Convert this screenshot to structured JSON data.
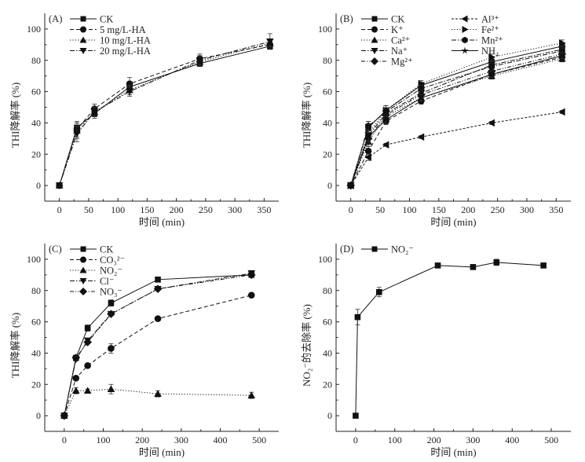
{
  "chart_data": [
    {
      "type": "line",
      "panel_tag": "(A)",
      "xlabel": "时间 (min)",
      "ylabel": "THI降解率 (%)",
      "xlim": [
        -25,
        375
      ],
      "ylim": [
        -10,
        110
      ],
      "xticks": [
        0,
        50,
        100,
        150,
        200,
        250,
        300,
        350
      ],
      "yticks": [
        0,
        20,
        40,
        60,
        80,
        100
      ],
      "legend_position": "top-left",
      "legend_columns": 1,
      "series": [
        {
          "name": "CK",
          "marker": "square",
          "dash": "solid",
          "x": [
            0,
            30,
            60,
            120,
            240,
            360
          ],
          "y": [
            0,
            37,
            46,
            63,
            78,
            89
          ],
          "err": [
            0,
            3,
            3,
            3,
            2,
            2
          ]
        },
        {
          "name": "5  mg/L-HA",
          "marker": "circle",
          "dash": "dashed",
          "x": [
            0,
            30,
            60,
            120,
            240,
            360
          ],
          "y": [
            0,
            36,
            49,
            65,
            81,
            90
          ],
          "err": [
            0,
            5,
            3,
            4,
            3,
            2
          ]
        },
        {
          "name": "10 mg/L-HA",
          "marker": "triangle-up",
          "dash": "dotted",
          "x": [
            0,
            30,
            60,
            120,
            240,
            360
          ],
          "y": [
            0,
            35,
            47,
            61,
            79,
            91
          ],
          "err": [
            0,
            5,
            3,
            3,
            2,
            2
          ]
        },
        {
          "name": "20 mg/L-HA",
          "marker": "triangle-down",
          "dash": "dashdot",
          "x": [
            0,
            30,
            60,
            120,
            240,
            360
          ],
          "y": [
            0,
            33,
            47,
            60,
            80,
            92
          ],
          "err": [
            0,
            5,
            3,
            3,
            3,
            5
          ]
        }
      ]
    },
    {
      "type": "line",
      "panel_tag": "(B)",
      "xlabel": "时间 (min)",
      "ylabel": "THI降解率 (%)",
      "xlim": [
        -25,
        375
      ],
      "ylim": [
        -10,
        110
      ],
      "xticks": [
        0,
        50,
        100,
        150,
        200,
        250,
        300,
        350
      ],
      "yticks": [
        0,
        20,
        40,
        60,
        80,
        100
      ],
      "legend_position": "top-left",
      "legend_columns": 2,
      "series": [
        {
          "name": "CK",
          "marker": "square",
          "dash": "solid",
          "x": [
            0,
            30,
            60,
            120,
            240,
            360
          ],
          "y": [
            0,
            37,
            48,
            64,
            79,
            89
          ],
          "err": [
            0,
            4,
            3,
            2,
            2,
            2
          ]
        },
        {
          "name": "K⁺",
          "marker": "circle",
          "dash": "dashed",
          "x": [
            0,
            30,
            60,
            120,
            240,
            360
          ],
          "y": [
            0,
            22,
            41,
            54,
            71,
            82
          ],
          "err": [
            0,
            3,
            2,
            2,
            2,
            2
          ]
        },
        {
          "name": "Ca²⁺",
          "marker": "triangle-up",
          "dash": "dotted",
          "x": [
            0,
            30,
            60,
            120,
            240,
            360
          ],
          "y": [
            0,
            28,
            44,
            56,
            70,
            81
          ],
          "err": [
            0,
            3,
            2,
            2,
            2,
            2
          ]
        },
        {
          "name": "Na⁺",
          "marker": "triangle-down",
          "dash": "dashdot",
          "x": [
            0,
            30,
            60,
            120,
            240,
            360
          ],
          "y": [
            0,
            32,
            46,
            59,
            77,
            87
          ],
          "err": [
            0,
            3,
            2,
            2,
            2,
            2
          ]
        },
        {
          "name": "Mg²⁺",
          "marker": "diamond",
          "dash": "dashdotdot",
          "x": [
            0,
            30,
            60,
            120,
            240,
            360
          ],
          "y": [
            0,
            30,
            45,
            58,
            73,
            84
          ],
          "err": [
            0,
            3,
            2,
            2,
            2,
            2
          ]
        },
        {
          "name": "Al³⁺",
          "marker": "triangle-left",
          "dash": "shortdash",
          "x": [
            0,
            30,
            60,
            120,
            240,
            360
          ],
          "y": [
            0,
            18,
            26,
            31,
            40,
            47
          ],
          "err": [
            0,
            2,
            1,
            1,
            1,
            1
          ]
        },
        {
          "name": "Fe²⁺",
          "marker": "triangle-right",
          "dash": "dotted",
          "x": [
            0,
            30,
            60,
            120,
            240,
            360
          ],
          "y": [
            0,
            33,
            48,
            65,
            82,
            91
          ],
          "err": [
            0,
            3,
            3,
            2,
            2,
            2
          ]
        },
        {
          "name": "Mn²⁺",
          "marker": "hexagon",
          "dash": "dashdot",
          "x": [
            0,
            30,
            60,
            120,
            240,
            360
          ],
          "y": [
            0,
            38,
            47,
            62,
            76,
            86
          ],
          "err": [
            0,
            3,
            2,
            2,
            2,
            2
          ]
        },
        {
          "name": "NH₄",
          "marker": "star",
          "dash": "solid",
          "x": [
            0,
            30,
            60,
            120,
            240,
            360
          ],
          "y": [
            0,
            31,
            42,
            56,
            71,
            83
          ],
          "err": [
            0,
            3,
            2,
            2,
            2,
            2
          ]
        }
      ]
    },
    {
      "type": "line",
      "panel_tag": "(C)",
      "xlabel": "时间 (min)",
      "ylabel": "THI降解率 (%)",
      "xlim": [
        -50,
        550
      ],
      "ylim": [
        -10,
        110
      ],
      "xticks": [
        0,
        100,
        200,
        300,
        400,
        500
      ],
      "yticks": [
        0,
        20,
        40,
        60,
        80,
        100
      ],
      "legend_position": "top-left",
      "legend_columns": 1,
      "series": [
        {
          "name": "CK",
          "marker": "square",
          "dash": "solid",
          "x": [
            0,
            30,
            60,
            120,
            240,
            480
          ],
          "y": [
            0,
            37,
            56,
            72,
            87,
            90
          ],
          "err": [
            0,
            1,
            2,
            2,
            1,
            1
          ]
        },
        {
          "name": "CO₃²⁻",
          "marker": "circle",
          "dash": "dashed",
          "x": [
            0,
            30,
            60,
            120,
            240,
            480
          ],
          "y": [
            0,
            24,
            32,
            43,
            62,
            77
          ],
          "err": [
            0,
            1,
            1,
            3,
            1,
            1
          ]
        },
        {
          "name": "NO₂⁻",
          "marker": "triangle-up",
          "dash": "dotted",
          "x": [
            0,
            30,
            60,
            120,
            240,
            480
          ],
          "y": [
            0,
            16,
            16,
            17,
            14,
            13
          ],
          "err": [
            0,
            2,
            1,
            3,
            2,
            2
          ]
        },
        {
          "name": "Cl⁻",
          "marker": "triangle-down",
          "dash": "dashdot",
          "x": [
            0,
            30,
            60,
            120,
            240,
            480
          ],
          "y": [
            0,
            36,
            48,
            65,
            81,
            91
          ],
          "err": [
            0,
            1,
            1,
            1,
            1,
            1
          ]
        },
        {
          "name": "NO₃⁻",
          "marker": "diamond",
          "dash": "dashdotdot",
          "x": [
            0,
            30,
            60,
            120,
            240,
            480
          ],
          "y": [
            0,
            37,
            47,
            65,
            81,
            90
          ],
          "err": [
            0,
            1,
            1,
            1,
            1,
            1
          ]
        }
      ]
    },
    {
      "type": "line",
      "panel_tag": "(D)",
      "xlabel": "时间 (min)",
      "ylabel": "NO₂⁻的去除率 (%)",
      "xlim": [
        -50,
        550
      ],
      "ylim": [
        -10,
        110
      ],
      "xticks": [
        0,
        100,
        200,
        300,
        400,
        500
      ],
      "yticks": [
        0,
        20,
        40,
        60,
        80,
        100
      ],
      "legend_position": "top-left",
      "legend_columns": 1,
      "series": [
        {
          "name": "NO₂⁻",
          "marker": "square",
          "dash": "solid",
          "x": [
            0,
            5,
            60,
            210,
            300,
            360,
            480
          ],
          "y": [
            0,
            63,
            79,
            96,
            95,
            98,
            96
          ],
          "err": [
            0,
            5,
            3,
            1,
            1,
            2,
            1
          ]
        }
      ]
    }
  ]
}
